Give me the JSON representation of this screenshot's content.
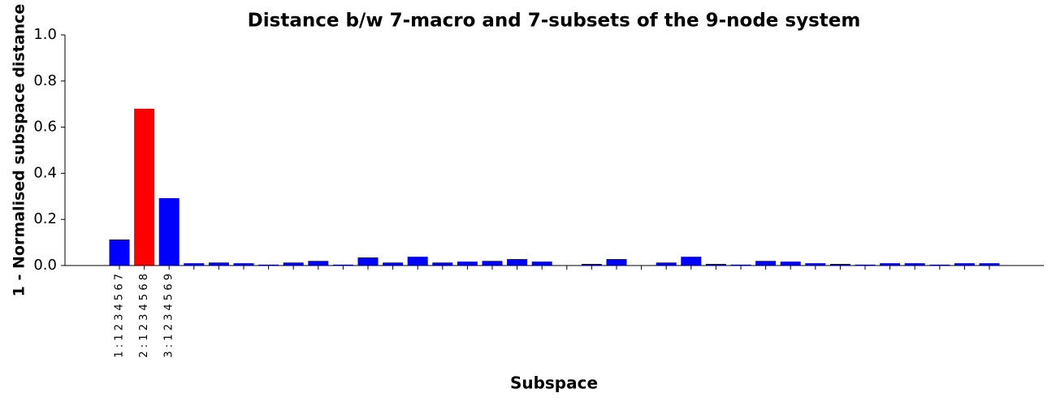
{
  "chart_data": {
    "type": "bar",
    "title": "Distance b/w 7-macro and 7-subsets of the 9-node system",
    "xlabel": "Subspace",
    "ylabel": "1 - Normalised subspace distance",
    "categories": [
      "1 : 1 2 3 4 5 6 7",
      "2 : 1 2 3 4 5 6 8",
      "3 : 1 2 3 4 5 6 9",
      null,
      null,
      null,
      null,
      null,
      null,
      null,
      null,
      null,
      null,
      null,
      null,
      null,
      null,
      null,
      null,
      null,
      null,
      null,
      null,
      null,
      null,
      null,
      null,
      null,
      null,
      null,
      null,
      null,
      null,
      null,
      null,
      null
    ],
    "values": [
      0.113,
      0.68,
      0.292,
      0.01,
      0.013,
      0.01,
      0.004,
      0.013,
      0.02,
      0.004,
      0.035,
      0.013,
      0.038,
      0.013,
      0.017,
      0.02,
      0.028,
      0.017,
      0.001,
      0.007,
      0.028,
      0.001,
      0.013,
      0.038,
      0.007,
      0.004,
      0.02,
      0.017,
      0.01,
      0.007,
      0.004,
      0.01,
      0.01,
      0.004,
      0.01,
      0.01
    ],
    "colors": [
      "#0000ff",
      "#ff0000",
      "#0000ff",
      "#0000ff",
      "#0000ff",
      "#0000ff",
      "#0000ff",
      "#0000ff",
      "#0000ff",
      "#0000ff",
      "#0000ff",
      "#0000ff",
      "#0000ff",
      "#0000ff",
      "#0000ff",
      "#0000ff",
      "#0000ff",
      "#0000ff",
      "#0000ff",
      "#0000ff",
      "#0000ff",
      "#0000ff",
      "#0000ff",
      "#0000ff",
      "#0000ff",
      "#0000ff",
      "#0000ff",
      "#0000ff",
      "#0000ff",
      "#0000ff",
      "#0000ff",
      "#0000ff",
      "#0000ff",
      "#0000ff",
      "#0000ff",
      "#0000ff"
    ],
    "ylim": [
      0,
      1.0
    ],
    "yticks": [
      {
        "value": 0,
        "label": "0.0"
      },
      {
        "value": 0.2,
        "label": "0.2"
      },
      {
        "value": 0.4,
        "label": "0.4"
      },
      {
        "value": 0.6,
        "label": "0.6"
      },
      {
        "value": 0.8,
        "label": "0.8"
      },
      {
        "value": 1.0,
        "label": "1.0"
      }
    ],
    "grid": false
  }
}
